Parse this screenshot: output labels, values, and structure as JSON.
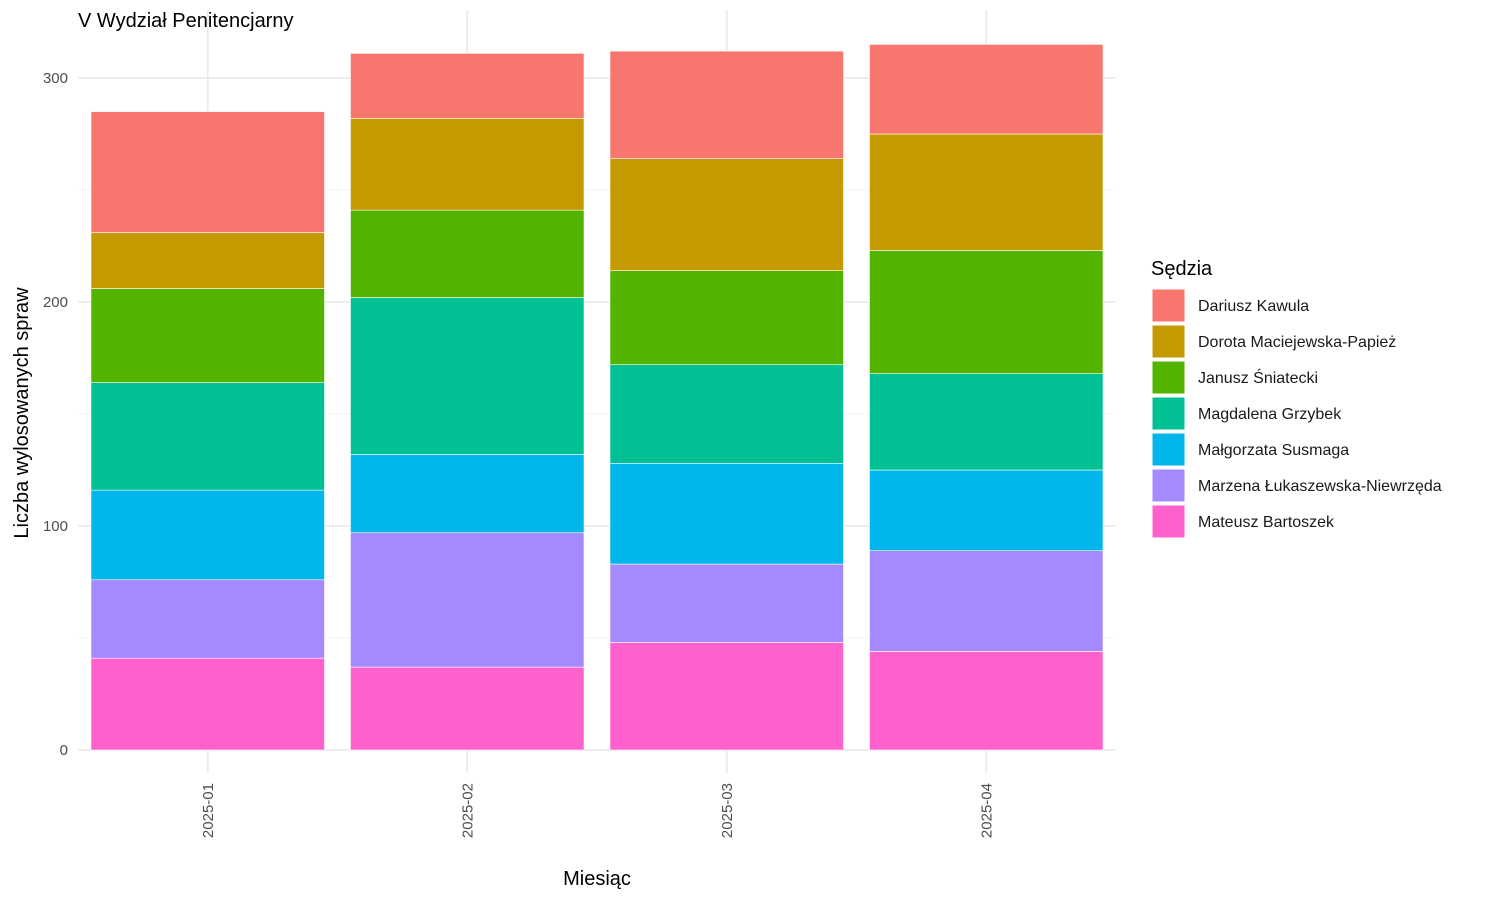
{
  "chart_data": {
    "type": "bar",
    "stacked": true,
    "title": "V Wydział Penitencjarny",
    "xlabel": "Miesiąc",
    "ylabel": "Liczba wylosowanych spraw",
    "ylim": [
      0,
      315
    ],
    "yticks": [
      0,
      100,
      200,
      300
    ],
    "grid": true,
    "legend_title": "Sędzia",
    "legend_position": "right",
    "categories": [
      "2025-01",
      "2025-02",
      "2025-03",
      "2025-04"
    ],
    "series": [
      {
        "name": "Mateusz Bartoszek",
        "color": "#FF61CC",
        "values": [
          41,
          37,
          48,
          44
        ]
      },
      {
        "name": "Marzena Łukaszewska-Niewrzęda",
        "color": "#A58AFF",
        "values": [
          35,
          60,
          35,
          45
        ]
      },
      {
        "name": "Małgorzata Susmaga",
        "color": "#00B6EB",
        "values": [
          40,
          35,
          45,
          36
        ]
      },
      {
        "name": "Magdalena Grzybek",
        "color": "#00C094",
        "values": [
          48,
          70,
          44,
          43
        ]
      },
      {
        "name": "Janusz Śniatecki",
        "color": "#53B400",
        "values": [
          42,
          39,
          42,
          55
        ]
      },
      {
        "name": "Dorota Maciejewska-Papież",
        "color": "#C49A00",
        "values": [
          25,
          41,
          50,
          52
        ]
      },
      {
        "name": "Dariusz Kawula",
        "color": "#F8766D",
        "values": [
          54,
          29,
          48,
          40
        ]
      }
    ],
    "legend_order": [
      "Dariusz Kawula",
      "Dorota Maciejewska-Papież",
      "Janusz Śniatecki",
      "Magdalena Grzybek",
      "Małgorzata Susmaga",
      "Marzena Łukaszewska-Niewrzęda",
      "Mateusz Bartoszek"
    ]
  }
}
